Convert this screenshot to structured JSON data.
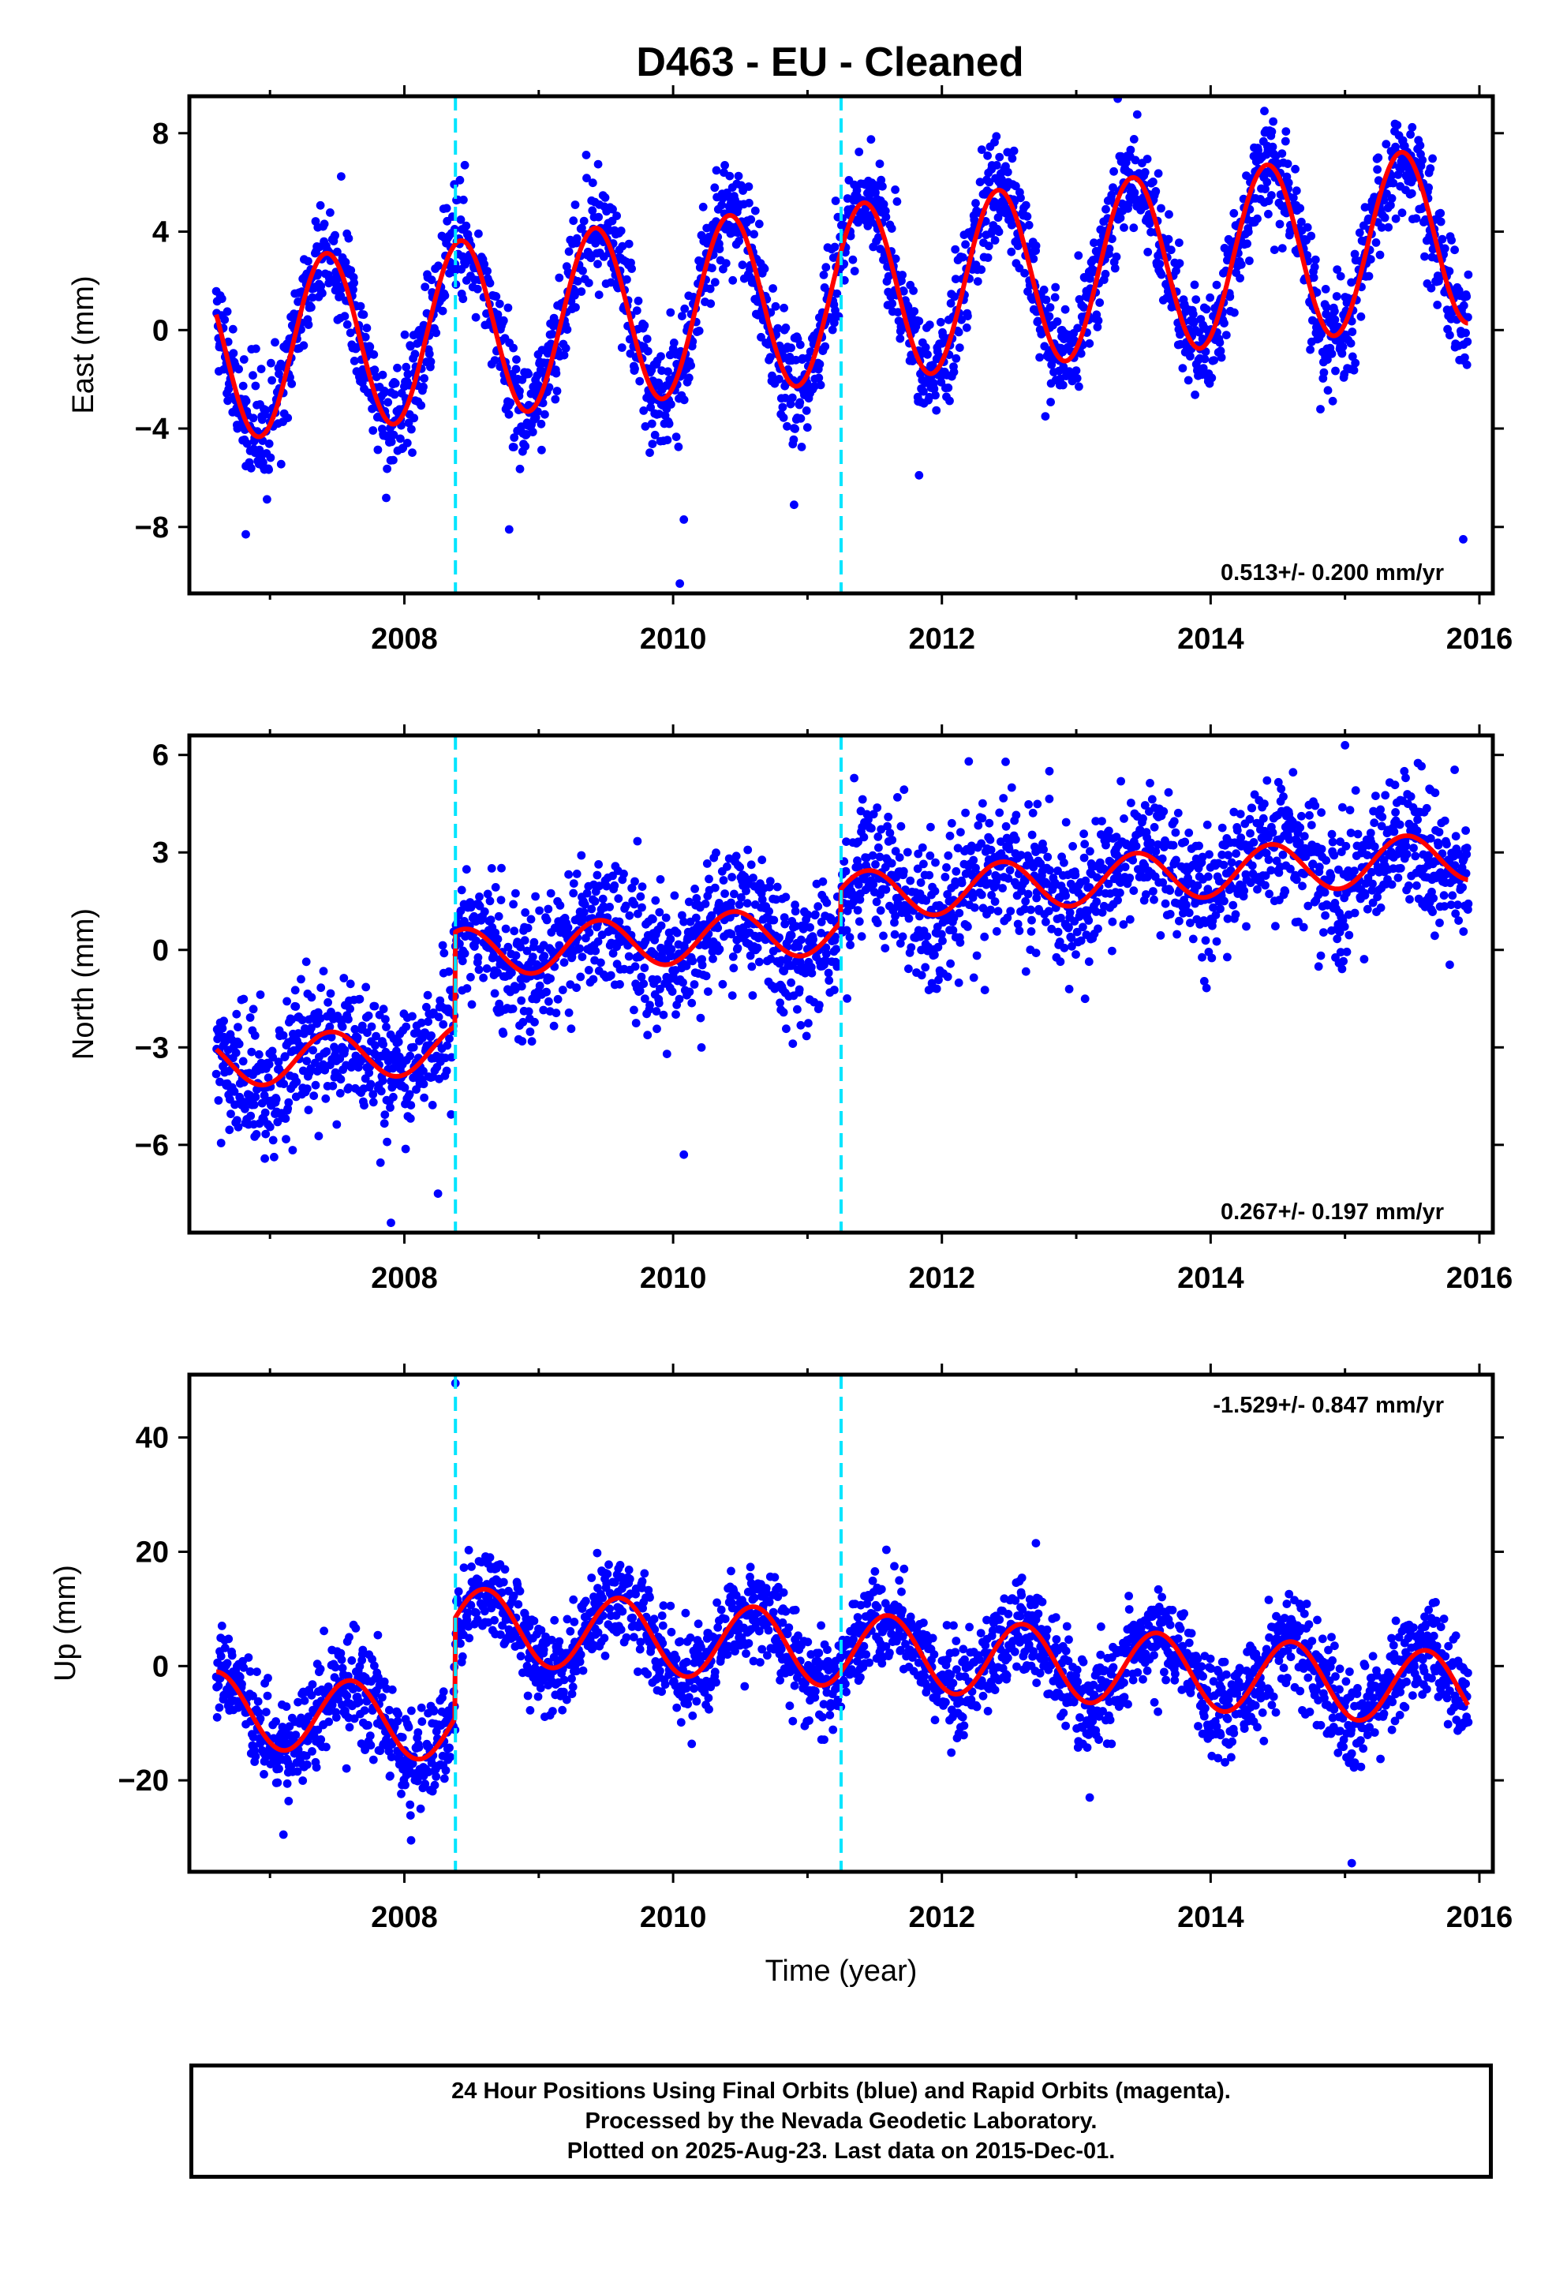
{
  "figure": {
    "title": "D463  - EU - Cleaned",
    "colors": {
      "data_points": "#0000ff",
      "model_fit": "#ff0000",
      "offset_lines": "#00e5ff",
      "frame": "#000000"
    }
  },
  "footer": {
    "line1": "24 Hour Positions Using Final Orbits (blue) and Rapid Orbits (magenta).",
    "line2": "Processed by the Nevada Geodetic Laboratory.",
    "line3": "Plotted on 2025-Aug-23. Last data on 2015-Dec-01."
  },
  "chart_data": [
    {
      "type": "scatter",
      "component": "East",
      "ylabel": "East (mm)",
      "xlabel": "",
      "xlim": [
        2006.4,
        2016.1
      ],
      "ylim": [
        -10.7,
        9.5
      ],
      "x_ticks": [
        2008,
        2010,
        2012,
        2014,
        2016
      ],
      "y_ticks": [
        -8,
        -4,
        0,
        4,
        8
      ],
      "rate_label": "0.513+/- 0.200 mm/yr",
      "offset_epochs": [
        2008.38,
        2011.25
      ],
      "data_start": 2006.6,
      "data_end": 2015.92,
      "model": {
        "intercept": -0.9,
        "trend_mm_per_yr": 0.513,
        "annual_amplitude": 3.6,
        "peak_phase_yr": 0.42,
        "offsets": []
      },
      "noise_std": 1.1,
      "outliers": [
        {
          "x": 2008.45,
          "y": 6.7
        },
        {
          "x": 2014.4,
          "y": 8.9
        },
        {
          "x": 2010.05,
          "y": -10.3
        },
        {
          "x": 2010.08,
          "y": -7.7
        },
        {
          "x": 2008.78,
          "y": -8.1
        },
        {
          "x": 2006.82,
          "y": -8.3
        },
        {
          "x": 2010.9,
          "y": -7.1
        },
        {
          "x": 2015.88,
          "y": -8.5
        },
        {
          "x": 2011.83,
          "y": -5.9
        }
      ]
    },
    {
      "type": "scatter",
      "component": "North",
      "ylabel": "North (mm)",
      "xlabel": "",
      "xlim": [
        2006.4,
        2016.1
      ],
      "ylim": [
        -8.7,
        6.6
      ],
      "x_ticks": [
        2008,
        2010,
        2012,
        2014,
        2016
      ],
      "y_ticks": [
        -6,
        -3,
        0,
        3,
        6
      ],
      "rate_label": "0.267+/- 0.197 mm/yr",
      "offset_epochs": [
        2008.38,
        2011.25
      ],
      "data_start": 2006.6,
      "data_end": 2015.92,
      "model": {
        "intercept": -3.5,
        "trend_mm_per_yr": 0.267,
        "annual_amplitude": 0.75,
        "peak_phase_yr": 0.45,
        "offsets": [
          {
            "epoch": 2008.38,
            "size": 2.9
          },
          {
            "epoch": 2011.25,
            "size": 1.0
          }
        ]
      },
      "noise_std": 1.05,
      "outliers": [
        {
          "x": 2007.9,
          "y": -8.4
        },
        {
          "x": 2015.0,
          "y": 6.3
        },
        {
          "x": 2008.25,
          "y": -7.5
        },
        {
          "x": 2012.2,
          "y": 5.8
        },
        {
          "x": 2012.8,
          "y": 5.5
        },
        {
          "x": 2010.08,
          "y": -6.3
        }
      ]
    },
    {
      "type": "scatter",
      "component": "Up",
      "ylabel": "Up (mm)",
      "xlabel": "Time (year)",
      "xlim": [
        2006.4,
        2016.1
      ],
      "ylim": [
        -36,
        51
      ],
      "x_ticks": [
        2008,
        2010,
        2012,
        2014,
        2016
      ],
      "y_ticks": [
        -20,
        0,
        20,
        40
      ],
      "rate_label": "-1.529+/- 0.847 mm/yr",
      "offset_epochs": [
        2008.38,
        2011.25
      ],
      "data_start": 2006.6,
      "data_end": 2015.92,
      "model": {
        "intercept": -7.5,
        "trend_mm_per_yr": -1.529,
        "annual_amplitude": 6.5,
        "peak_phase_yr": 0.6,
        "offsets": [
          {
            "epoch": 2008.38,
            "size": 17.5
          }
        ]
      },
      "noise_std": 4.2,
      "outliers": [
        {
          "x": 2008.38,
          "y": 49.5
        },
        {
          "x": 2015.05,
          "y": -34.5
        },
        {
          "x": 2007.1,
          "y": -29.5
        },
        {
          "x": 2008.05,
          "y": -30.5
        },
        {
          "x": 2013.1,
          "y": -23.0
        },
        {
          "x": 2012.7,
          "y": 21.5
        }
      ]
    }
  ]
}
